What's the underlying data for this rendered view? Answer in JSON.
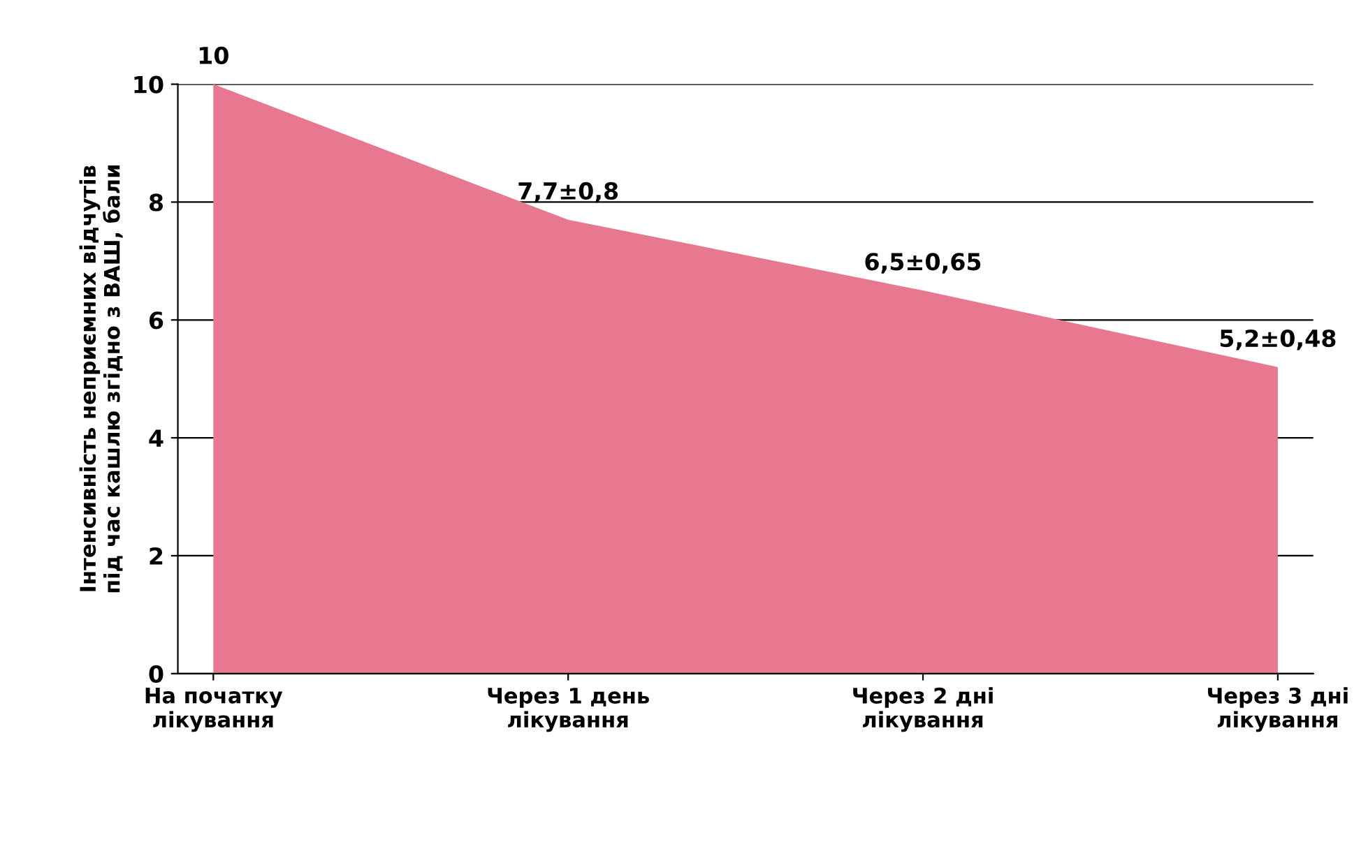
{
  "chart_data": {
    "type": "area",
    "ylabel": "Інтенсивність неприємних відчутів\nпід час кашлю згідно з ВАШ, бали",
    "categories": [
      "На початку\nлікування",
      "Через 1 день\nлікування",
      "Через 2 дні\nлікування",
      "Через 3 дні\nлікування"
    ],
    "series": [
      {
        "color": "#e77890",
        "values": [
          10,
          7.7,
          6.5,
          5.2
        ]
      }
    ],
    "value_labels": [
      "10",
      "7,7±0,8",
      "6,5±0,65",
      "5,2±0,48"
    ],
    "ylim": [
      0,
      10
    ],
    "yticks": [
      0,
      2,
      4,
      6,
      8,
      10
    ],
    "grid": "y"
  }
}
